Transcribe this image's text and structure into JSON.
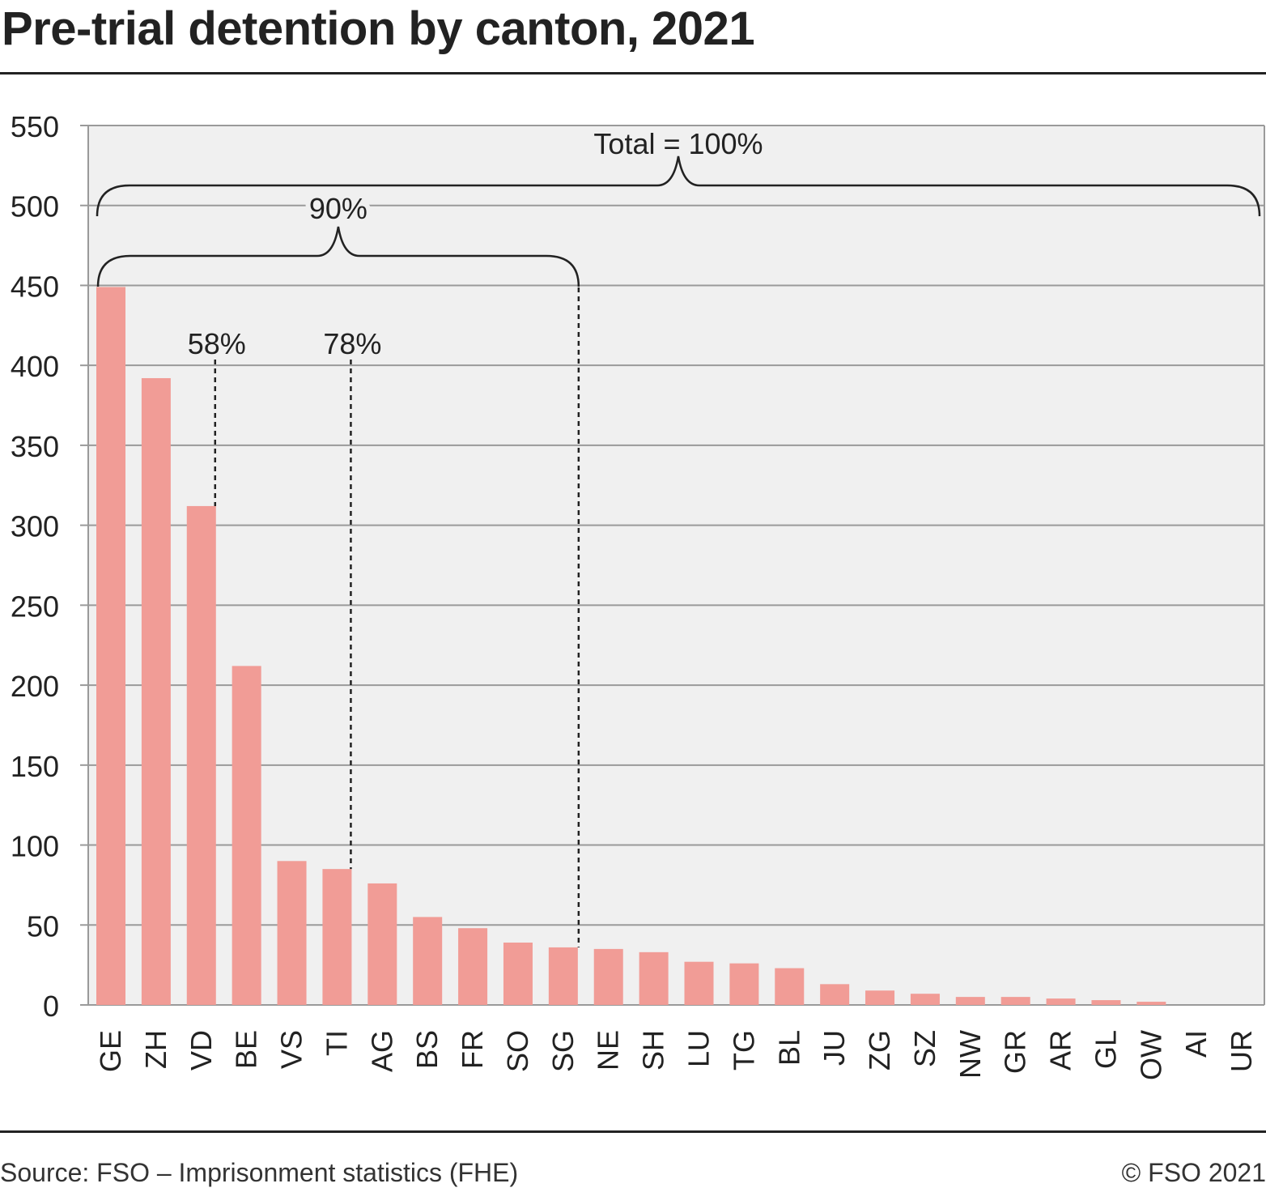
{
  "title": "Pre-trial detention by canton, 2021",
  "source": "Source: FSO – Imprisonment statistics (FHE)",
  "copyright": "© FSO 2021",
  "colors": {
    "bar": "#f19c96",
    "plot_bg": "#f0f0f0",
    "grid": "#9a9a9a",
    "text": "#222222"
  },
  "chart_data": {
    "type": "bar",
    "categories": [
      "GE",
      "ZH",
      "VD",
      "BE",
      "VS",
      "TI",
      "AG",
      "BS",
      "FR",
      "SO",
      "SG",
      "NE",
      "SH",
      "LU",
      "TG",
      "BL",
      "JU",
      "ZG",
      "SZ",
      "NW",
      "GR",
      "AR",
      "GL",
      "OW",
      "AI",
      "UR"
    ],
    "values": [
      449,
      392,
      312,
      212,
      90,
      85,
      76,
      55,
      48,
      39,
      36,
      35,
      33,
      27,
      26,
      23,
      13,
      9,
      7,
      5,
      5,
      4,
      3,
      2,
      0,
      0
    ],
    "title": "Pre-trial detention by canton, 2021",
    "xlabel": "",
    "ylabel": "",
    "ylim": [
      0,
      550
    ],
    "yticks": [
      0,
      50,
      100,
      150,
      200,
      250,
      300,
      350,
      400,
      450,
      500,
      550
    ],
    "grid": true,
    "annotations": [
      {
        "label": "Total = 100%",
        "type": "bracket",
        "from": "GE",
        "to": "UR"
      },
      {
        "label": "90%",
        "type": "bracket",
        "from": "GE",
        "to": "SG"
      },
      {
        "label": "58%",
        "type": "marker",
        "after": "VD"
      },
      {
        "label": "78%",
        "type": "marker",
        "after": "TI"
      }
    ]
  }
}
